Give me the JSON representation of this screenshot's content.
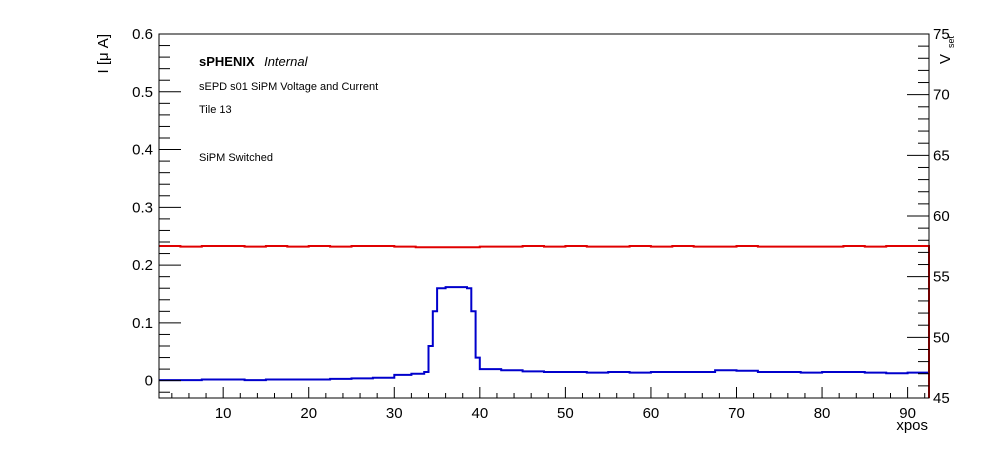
{
  "chart_data": {
    "type": "line",
    "title": "",
    "xlabel": "xpos",
    "ylabel": "I [μ A]",
    "y2label": "V",
    "y2label_sub": "set",
    "xlim": [
      2.5,
      92.5
    ],
    "ylim": [
      -0.03,
      0.6
    ],
    "y2lim": [
      45,
      75
    ],
    "x_ticks": [
      10,
      20,
      30,
      40,
      50,
      60,
      70,
      80,
      90
    ],
    "y_ticks": [
      0,
      0.1,
      0.2,
      0.3,
      0.4,
      0.5,
      0.6
    ],
    "y_tick_labels": [
      "0",
      "0.1",
      "0.2",
      "0.3",
      "0.4",
      "0.5",
      "0.6"
    ],
    "y2_ticks": [
      45,
      50,
      55,
      60,
      65,
      70,
      75
    ],
    "grid": false,
    "annotations": {
      "brand_bold": "sPHENIX",
      "brand_italic": "Internal",
      "line1": "sEPD s01 SiPM Voltage and Current",
      "line2": "Tile 13",
      "line3": "SiPM Switched"
    },
    "series": [
      {
        "axis": "left",
        "color": "#0000cc",
        "x": [
          2.5,
          5,
          7.5,
          10,
          12.5,
          15,
          17.5,
          20,
          22.5,
          25,
          27.5,
          30,
          32,
          33.5,
          34,
          34.5,
          35,
          36,
          37,
          38,
          38.5,
          39,
          39.5,
          40,
          42.5,
          45,
          47.5,
          50,
          52.5,
          55,
          57.5,
          60,
          62.5,
          65,
          67.5,
          70,
          72.5,
          75,
          77.5,
          80,
          82.5,
          85,
          87.5,
          90,
          92.5
        ],
        "y": [
          0.001,
          0.001,
          0.002,
          0.002,
          0.001,
          0.002,
          0.002,
          0.002,
          0.003,
          0.004,
          0.005,
          0.01,
          0.012,
          0.015,
          0.06,
          0.12,
          0.16,
          0.162,
          0.162,
          0.162,
          0.16,
          0.12,
          0.04,
          0.02,
          0.018,
          0.016,
          0.015,
          0.015,
          0.014,
          0.015,
          0.014,
          0.015,
          0.015,
          0.015,
          0.018,
          0.017,
          0.015,
          0.015,
          0.014,
          0.015,
          0.015,
          0.014,
          0.013,
          0.014,
          0.014
        ]
      },
      {
        "axis": "right",
        "color": "#e00000",
        "x": [
          2.5,
          5,
          7.5,
          10,
          12.5,
          15,
          17.5,
          20,
          22.5,
          25,
          27.5,
          30,
          32.5,
          35,
          37.5,
          40,
          42.5,
          45,
          47.5,
          50,
          52.5,
          55,
          57.5,
          60,
          62.5,
          65,
          67.5,
          70,
          72.5,
          75,
          77.5,
          80,
          82.5,
          85,
          87.5,
          90,
          92.5
        ],
        "y": [
          0.233,
          0.232,
          0.233,
          0.233,
          0.232,
          0.233,
          0.232,
          0.233,
          0.232,
          0.233,
          0.233,
          0.232,
          0.231,
          0.231,
          0.231,
          0.232,
          0.232,
          0.233,
          0.232,
          0.233,
          0.232,
          0.232,
          0.233,
          0.232,
          0.233,
          0.232,
          0.232,
          0.233,
          0.232,
          0.232,
          0.232,
          0.232,
          0.233,
          0.232,
          0.233,
          0.233,
          0.233
        ]
      }
    ]
  }
}
